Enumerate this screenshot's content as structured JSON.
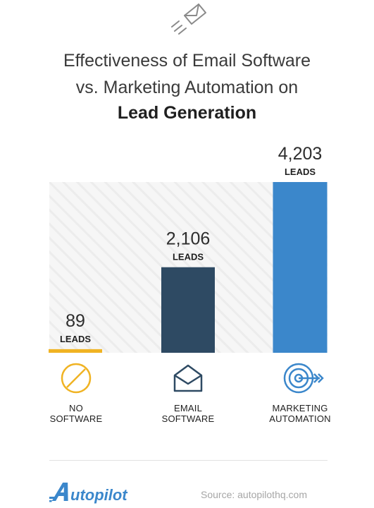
{
  "title": {
    "line1": "Effectiveness of Email Software",
    "line2": "vs. Marketing Automation on",
    "line3": "Lead Generation"
  },
  "top_icon": "paper-plane-envelope-icon",
  "colors": {
    "no_software": "#F0B323",
    "email_software": "#2E4A63",
    "marketing_automation": "#3B87CB",
    "icon_yellow": "#F0B323",
    "icon_navy": "#2E4A63",
    "icon_blue": "#3B87CB"
  },
  "chart_data": {
    "type": "bar",
    "categories": [
      "NO SOFTWARE",
      "EMAIL SOFTWARE",
      "MARKETING AUTOMATION"
    ],
    "values": [
      89,
      2106,
      4203
    ],
    "value_labels": [
      "89",
      "2,106",
      "4,203"
    ],
    "unit_label": "LEADS",
    "ylim": [
      0,
      4203
    ],
    "grid": false,
    "legend": "none",
    "background": "hatched panel"
  },
  "categories_display": [
    {
      "line1": "NO",
      "line2": "SOFTWARE",
      "icon": "prohibited-circle-icon"
    },
    {
      "line1": "EMAIL",
      "line2": "SOFTWARE",
      "icon": "envelope-icon"
    },
    {
      "line1": "MARKETING",
      "line2": "AUTOMATION",
      "icon": "target-arrow-icon"
    }
  ],
  "footer": {
    "logo": "Autopilot",
    "source": "Source:  autopilothq.com"
  }
}
